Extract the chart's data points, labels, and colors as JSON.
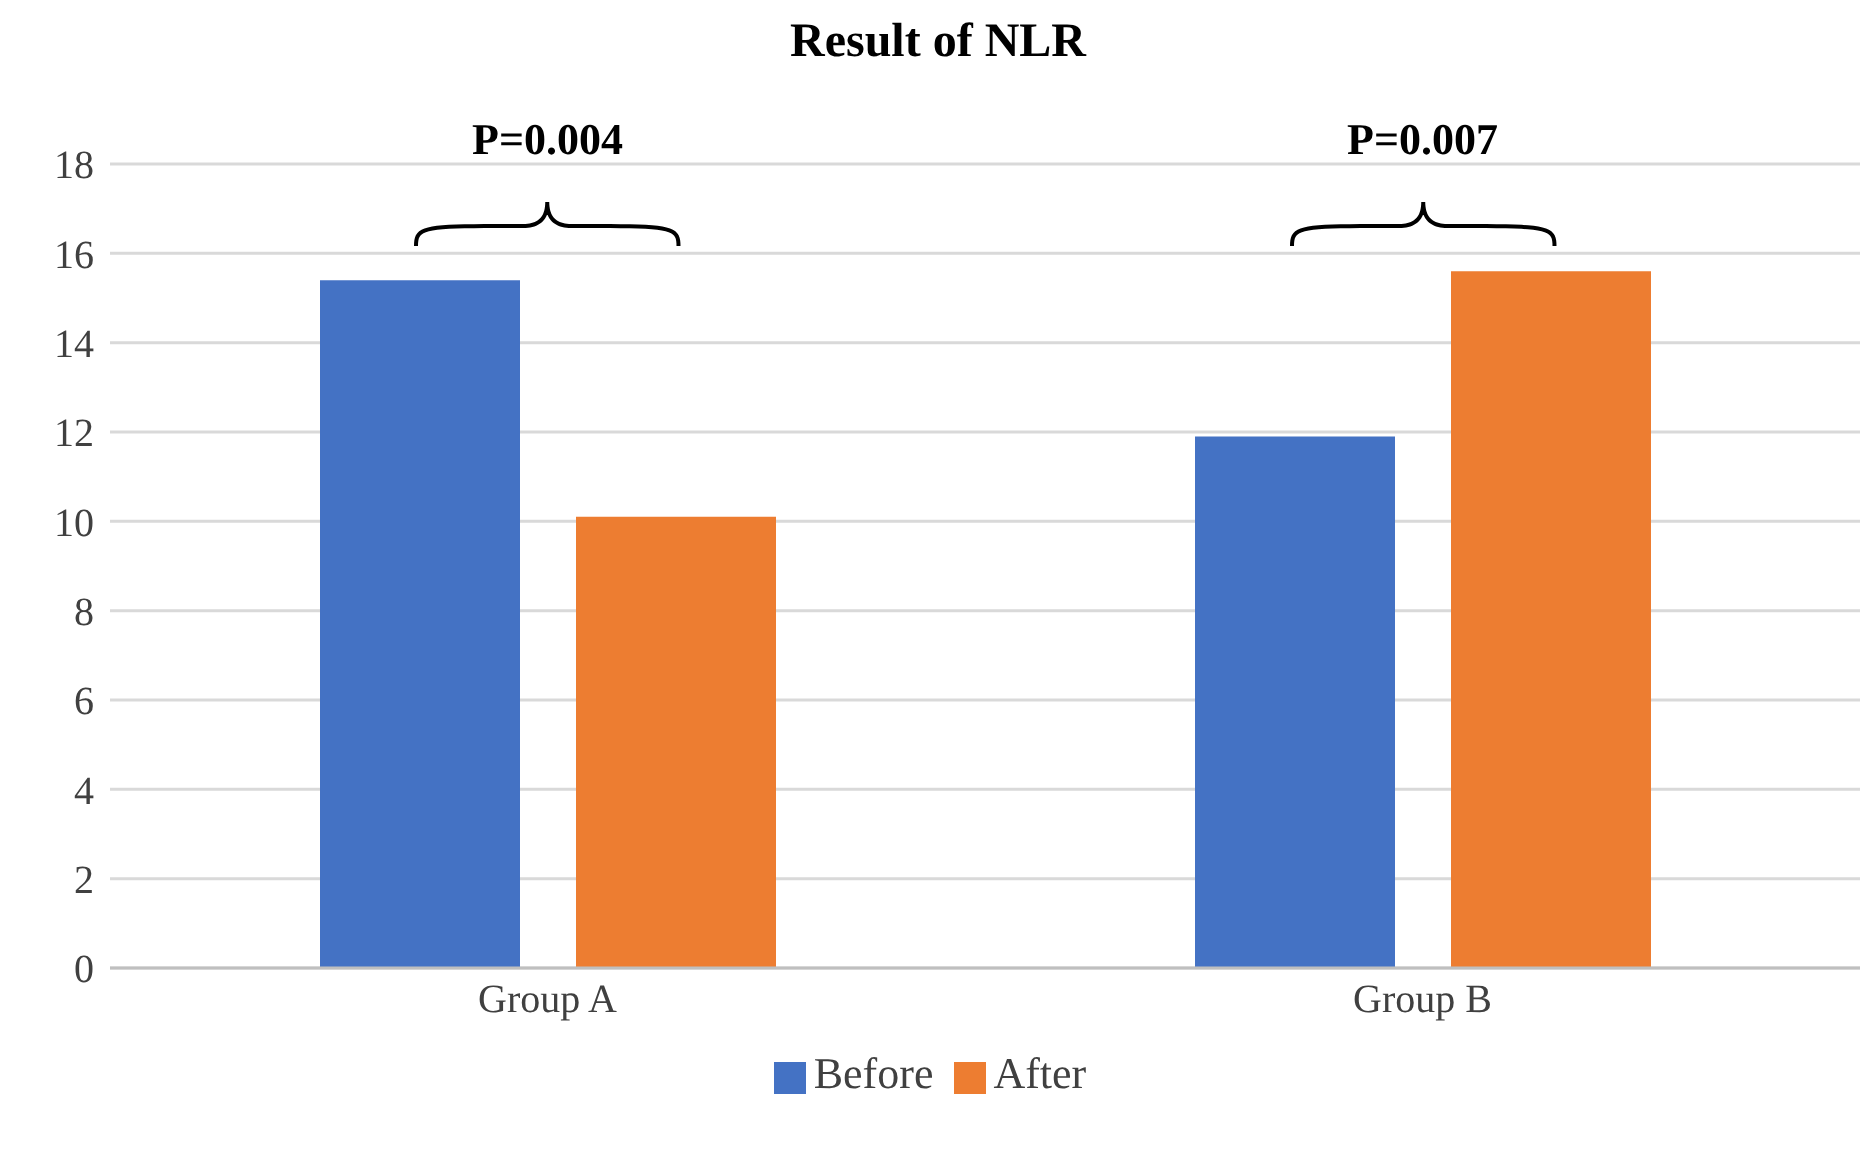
{
  "chart_data": {
    "type": "bar",
    "title": "Result of NLR",
    "categories": [
      "Group A",
      "Group B"
    ],
    "series": [
      {
        "name": "Before",
        "color": "#4472c4",
        "values": [
          15.4,
          11.9
        ]
      },
      {
        "name": "After",
        "color": "#ed7d31",
        "values": [
          10.1,
          15.6
        ]
      }
    ],
    "ylim": [
      0,
      18
    ],
    "yticks": [
      0,
      2,
      4,
      6,
      8,
      10,
      12,
      14,
      16,
      18
    ],
    "grid": "y",
    "legend": "bottom",
    "annotations": [
      "P=0.004",
      "P=0.007"
    ]
  }
}
